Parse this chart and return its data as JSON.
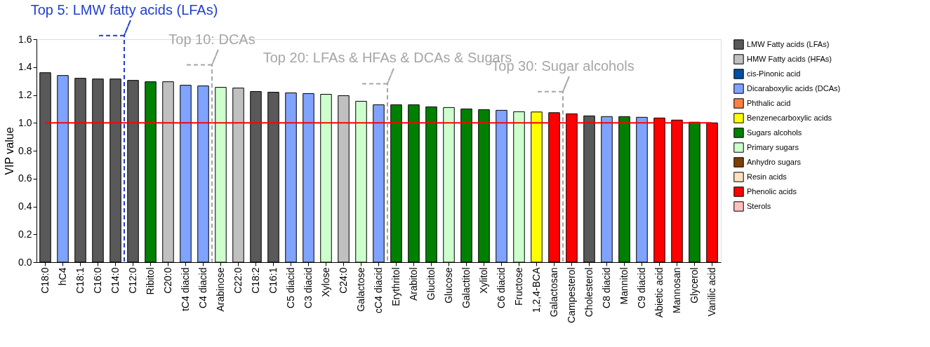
{
  "chart_data": {
    "type": "bar",
    "ylabel": "VIP value",
    "categories": [
      "C18:0",
      "hC4",
      "C18:1",
      "C16:0",
      "C14:0",
      "C12:0",
      "Ribitol",
      "C20:0",
      "tC4 diacid",
      "C4 diacid",
      "Arabinose",
      "C22:0",
      "C18:2",
      "C16:1",
      "C5 diacid",
      "C3 diacid",
      "Xylose",
      "C24:0",
      "Galactose",
      "cC4 diacid",
      "Erythritol",
      "Arabitol",
      "Glucitol",
      "Glucose",
      "Galactitol",
      "Xylitol",
      "C6 diacid",
      "Fructose",
      "1,2,4-BCA",
      "Galactosan",
      "Campesterol",
      "Cholesterol",
      "C8 diacid",
      "Mannitol",
      "C9 diacid",
      "Abietic acid",
      "Mannosan",
      "Glycerol",
      "Vanilic acid"
    ],
    "series": [
      {
        "name": "LMW Fatty acids (LFAs)",
        "color": "#595959",
        "values": [
          1.36,
          null,
          1.32,
          1.315,
          1.315,
          1.305,
          null,
          null,
          null,
          null,
          null,
          null,
          1.225,
          1.22,
          null,
          null,
          null,
          null,
          null,
          null,
          null,
          null,
          null,
          null,
          null,
          null,
          null,
          null,
          null,
          null,
          null,
          1.05,
          null,
          null,
          null,
          null,
          null,
          null,
          null
        ]
      },
      {
        "name": "HMW Fatty acids (HFAs)",
        "color": "#c0c0c0",
        "values": [
          null,
          null,
          null,
          null,
          null,
          null,
          null,
          1.295,
          null,
          null,
          null,
          1.25,
          null,
          null,
          null,
          null,
          null,
          1.195,
          null,
          null,
          null,
          null,
          null,
          null,
          null,
          null,
          null,
          null,
          null,
          null,
          null,
          null,
          null,
          null,
          null,
          null,
          null,
          null,
          null
        ]
      },
      {
        "name": "cis-Pinonic acid",
        "color": "#0050a0",
        "values": [
          null,
          null,
          null,
          null,
          null,
          null,
          null,
          null,
          null,
          null,
          null,
          null,
          null,
          null,
          null,
          null,
          null,
          null,
          null,
          null,
          null,
          null,
          null,
          null,
          null,
          null,
          null,
          null,
          null,
          null,
          null,
          null,
          null,
          null,
          null,
          null,
          null,
          null,
          null
        ]
      },
      {
        "name": "Dicaraboxylic acids (DCAs)",
        "color": "#7fa3ff",
        "values": [
          null,
          1.34,
          null,
          null,
          null,
          null,
          null,
          null,
          1.27,
          1.265,
          null,
          null,
          null,
          null,
          1.215,
          1.21,
          null,
          null,
          null,
          1.13,
          null,
          null,
          null,
          null,
          null,
          null,
          1.09,
          null,
          null,
          null,
          null,
          null,
          1.045,
          null,
          1.04,
          null,
          null,
          null,
          null
        ]
      },
      {
        "name": "Phthalic acid",
        "color": "#ff7f40",
        "values": [
          null,
          null,
          null,
          null,
          null,
          null,
          null,
          null,
          null,
          null,
          null,
          null,
          null,
          null,
          null,
          null,
          null,
          null,
          null,
          null,
          null,
          null,
          null,
          null,
          null,
          null,
          null,
          null,
          null,
          null,
          null,
          null,
          null,
          null,
          null,
          null,
          null,
          null,
          null
        ]
      },
      {
        "name": "Benzenecarboxylic acids",
        "color": "#ffff00",
        "values": [
          null,
          null,
          null,
          null,
          null,
          null,
          null,
          null,
          null,
          null,
          null,
          null,
          null,
          null,
          null,
          null,
          null,
          null,
          null,
          null,
          null,
          null,
          null,
          null,
          null,
          null,
          null,
          null,
          1.078,
          null,
          null,
          null,
          null,
          null,
          null,
          null,
          null,
          null,
          null
        ]
      },
      {
        "name": "Sugars alcohols",
        "color": "#008000",
        "values": [
          null,
          null,
          null,
          null,
          null,
          null,
          1.295,
          null,
          null,
          null,
          null,
          null,
          null,
          null,
          null,
          null,
          null,
          null,
          null,
          null,
          1.13,
          1.13,
          1.115,
          null,
          1.1,
          1.095,
          null,
          null,
          null,
          null,
          null,
          null,
          null,
          1.045,
          null,
          null,
          null,
          1.005,
          null
        ]
      },
      {
        "name": "Primary sugars",
        "color": "#ccffcc",
        "values": [
          null,
          null,
          null,
          null,
          null,
          null,
          null,
          null,
          null,
          null,
          1.255,
          null,
          null,
          null,
          null,
          null,
          1.205,
          null,
          1.155,
          null,
          null,
          null,
          null,
          1.11,
          null,
          null,
          null,
          1.08,
          null,
          null,
          null,
          null,
          null,
          null,
          null,
          null,
          null,
          null,
          null
        ]
      },
      {
        "name": "Anhydro sugars",
        "color": "#7f3f00",
        "values": [
          null,
          null,
          null,
          null,
          null,
          null,
          null,
          null,
          null,
          null,
          null,
          null,
          null,
          null,
          null,
          null,
          null,
          null,
          null,
          null,
          null,
          null,
          null,
          null,
          null,
          null,
          null,
          null,
          null,
          null,
          null,
          null,
          null,
          null,
          null,
          null,
          null,
          null,
          null
        ]
      },
      {
        "name": "Resin acids",
        "color": "#ffe0c0",
        "values": [
          null,
          null,
          null,
          null,
          null,
          null,
          null,
          null,
          null,
          null,
          null,
          null,
          null,
          null,
          null,
          null,
          null,
          null,
          null,
          null,
          null,
          null,
          null,
          null,
          null,
          null,
          null,
          null,
          null,
          null,
          null,
          null,
          null,
          null,
          null,
          null,
          null,
          null,
          null
        ]
      },
      {
        "name": "Phenolic acids",
        "color": "#ff0000",
        "values": [
          null,
          null,
          null,
          null,
          null,
          null,
          null,
          null,
          null,
          null,
          null,
          null,
          null,
          null,
          null,
          null,
          null,
          null,
          null,
          null,
          null,
          null,
          null,
          null,
          null,
          null,
          null,
          null,
          null,
          1.073,
          1.065,
          null,
          null,
          null,
          null,
          1.035,
          1.02,
          null,
          1.0
        ]
      },
      {
        "name": "Sterols",
        "color": "#ffc0c0",
        "values": [
          null,
          null,
          null,
          null,
          null,
          null,
          null,
          null,
          null,
          null,
          null,
          null,
          null,
          null,
          null,
          null,
          null,
          null,
          null,
          null,
          null,
          null,
          null,
          null,
          null,
          null,
          null,
          null,
          null,
          null,
          null,
          null,
          null,
          null,
          null,
          null,
          null,
          null,
          null
        ]
      }
    ],
    "ylim": [
      0,
      1.6
    ],
    "yticks": [
      {
        "value": 0,
        "label": "0.0"
      },
      {
        "value": 0.2,
        "label": "0.2"
      },
      {
        "value": 0.4,
        "label": "0.4"
      },
      {
        "value": 0.6,
        "label": "0.6"
      },
      {
        "value": 0.8,
        "label": "0.8"
      },
      {
        "value": 1,
        "label": "1.0"
      },
      {
        "value": 1.2,
        "label": "1.2"
      },
      {
        "value": 1.4,
        "label": "1.4"
      },
      {
        "value": 1.6,
        "label": "1.6"
      }
    ],
    "ref_lines": [
      {
        "axis": "y",
        "value": 1.0,
        "color": "#ff0000"
      },
      {
        "axis": "x",
        "value": "C14:0",
        "label": "Top 5: LMW fatty acids (LFAs)",
        "color": "#1f3fd0",
        "line_style": "dashed"
      },
      {
        "axis": "x",
        "value": "C4 diacid",
        "label": "Top 10: DCAs",
        "color": "#a6a6a6",
        "line_style": "dashed"
      },
      {
        "axis": "x",
        "value": "cC4 diacid",
        "label": "Top 20: LFAs & HFAs & DCAs & Sugars",
        "color": "#a6a6a6",
        "line_style": "dashed"
      },
      {
        "axis": "x",
        "value": "Galactosan",
        "label": "Top 30: Sugar alcohols",
        "color": "#a6a6a6",
        "line_style": "dashed"
      }
    ],
    "grid": false,
    "legend": "right"
  }
}
